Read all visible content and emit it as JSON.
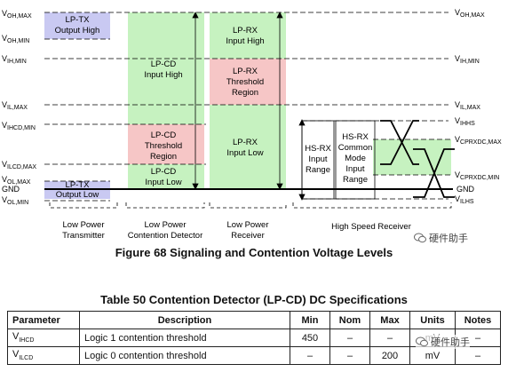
{
  "diagram": {
    "levels_left": [
      {
        "v": "V",
        "sub": "OH,MAX"
      },
      {
        "v": "V",
        "sub": "OH,MIN"
      },
      {
        "v": "V",
        "sub": "IH,MIN"
      },
      {
        "v": "V",
        "sub": "IL,MAX"
      },
      {
        "v": "V",
        "sub": "IHCD,MIN"
      },
      {
        "v": "V",
        "sub": "ILCD,MAX"
      },
      {
        "v": "V",
        "sub": "OL,MAX"
      },
      {
        "v": "GND",
        "sub": ""
      },
      {
        "v": "V",
        "sub": "OL,MIN"
      }
    ],
    "levels_right": [
      {
        "v": "V",
        "sub": "OH,MAX"
      },
      {
        "v": "V",
        "sub": "IH,MIN"
      },
      {
        "v": "V",
        "sub": "IL,MAX"
      },
      {
        "v": "V",
        "sub": "IHHS"
      },
      {
        "v": "V",
        "sub": "CPRXDC,MAX"
      },
      {
        "v": "V",
        "sub": "CPRXDC,MIN"
      },
      {
        "v": "GND",
        "sub": ""
      },
      {
        "v": "V",
        "sub": "ILHS"
      }
    ],
    "regions": {
      "lptx_high": [
        "LP-TX",
        "Output High"
      ],
      "lptx_low": [
        "LP-TX",
        "Output Low"
      ],
      "lpcd_high": [
        "LP-CD",
        "Input High"
      ],
      "lpcd_threshold": [
        "LP-CD",
        "Threshold",
        "Region"
      ],
      "lpcd_low": [
        "LP-CD",
        "Input Low"
      ],
      "lprx_high": [
        "LP-RX",
        "Input High"
      ],
      "lprx_threshold": [
        "LP-RX",
        "Threshold",
        "Region"
      ],
      "lprx_low": [
        "LP-RX",
        "Input Low"
      ],
      "hsrx_range": [
        "HS-RX",
        "Input",
        "Range"
      ],
      "hsrx_cm": [
        "HS-RX",
        "Common",
        "Mode",
        "Input",
        "Range"
      ]
    },
    "groups": [
      [
        "Low Power",
        "Transmitter"
      ],
      [
        "Low Power",
        "Contention Detector"
      ],
      [
        "Low Power",
        "Receiver"
      ],
      [
        "High Speed Receiver"
      ]
    ],
    "colors": {
      "green": "#c6f2c0",
      "red": "#f6c6c6",
      "blue": "#c9c9f2",
      "line": "#000000"
    }
  },
  "figure_caption": "Figure 68 Signaling and Contention Voltage Levels",
  "table": {
    "caption": "Table 50 Contention Detector (LP-CD) DC Specifications",
    "headers": [
      "Parameter",
      "Description",
      "Min",
      "Nom",
      "Max",
      "Units",
      "Notes"
    ],
    "rows": [
      {
        "param_v": "V",
        "param_sub": "IHCD",
        "description": "Logic 1 contention threshold",
        "min": "450",
        "nom": "–",
        "max": "–",
        "units": "mV",
        "notes": "–"
      },
      {
        "param_v": "V",
        "param_sub": "ILCD",
        "description": "Logic 0 contention threshold",
        "min": "–",
        "nom": "–",
        "max": "200",
        "units": "mV",
        "notes": "–"
      }
    ]
  },
  "watermark": "硬件助手"
}
